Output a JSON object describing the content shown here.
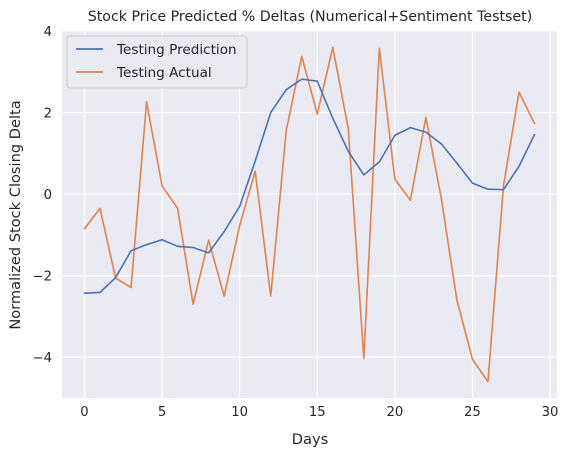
{
  "chart_data": {
    "type": "line",
    "title": "Stock Price Predicted % Deltas (Numerical+Sentiment Testset)",
    "xlabel": "Days",
    "ylabel": "Normalized Stock Closing Delta",
    "xlim": [
      -1.45,
      30.45
    ],
    "ylim": [
      -5.0,
      4.0
    ],
    "xticks": [
      0,
      5,
      10,
      15,
      20,
      25,
      30
    ],
    "yticks": [
      -4,
      -2,
      0,
      2,
      4
    ],
    "grid": true,
    "legend_position": "top-left",
    "background": "#eaeaf2",
    "x": [
      0,
      1,
      2,
      3,
      4,
      5,
      6,
      7,
      8,
      9,
      10,
      11,
      12,
      13,
      14,
      15,
      16,
      17,
      18,
      19,
      20,
      21,
      22,
      23,
      24,
      25,
      26,
      27,
      28,
      29
    ],
    "series": [
      {
        "name": "Testing Prediction",
        "color": "#4c72b0",
        "values": [
          -2.43,
          -2.41,
          -2.05,
          -1.39,
          -1.24,
          -1.12,
          -1.28,
          -1.31,
          -1.44,
          -0.92,
          -0.3,
          0.81,
          2.0,
          2.56,
          2.82,
          2.77,
          1.86,
          1.05,
          0.47,
          0.79,
          1.44,
          1.63,
          1.52,
          1.23,
          0.76,
          0.27,
          0.12,
          0.11,
          0.68,
          1.46
        ]
      },
      {
        "name": "Testing Actual",
        "color": "#dd8452",
        "values": [
          -0.85,
          -0.35,
          -2.06,
          -2.29,
          2.26,
          0.2,
          -0.35,
          -2.7,
          -1.13,
          -2.5,
          -0.77,
          0.56,
          -2.5,
          1.56,
          3.38,
          1.96,
          3.6,
          1.6,
          -4.03,
          3.58,
          0.37,
          -0.15,
          1.88,
          -0.12,
          -2.6,
          -4.05,
          -4.6,
          0.2,
          2.5,
          1.73
        ]
      }
    ]
  }
}
